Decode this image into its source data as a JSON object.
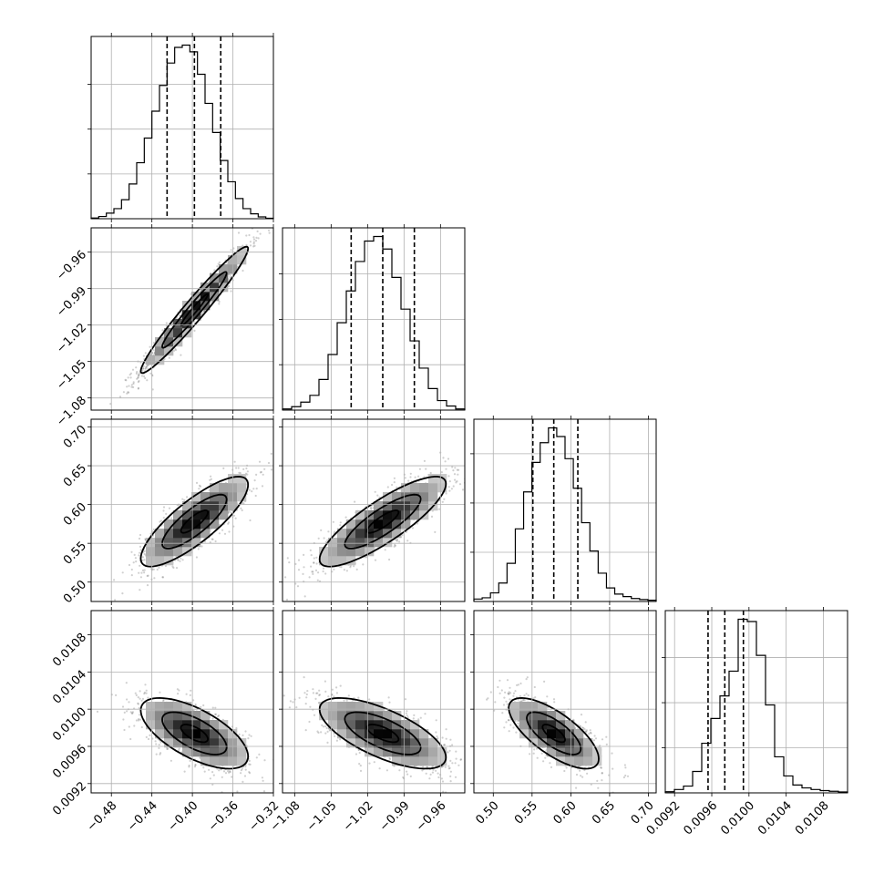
{
  "chart_data": {
    "type": "corner",
    "title": "",
    "grid": true,
    "parameters": [
      {
        "label": "",
        "range": [
          -0.5,
          -0.32
        ],
        "ticks": [
          -0.48,
          -0.44,
          -0.4,
          -0.36,
          -0.32
        ],
        "tick_labels": [
          "−0.48",
          "−0.44",
          "−0.40",
          "−0.36",
          "−0.32"
        ],
        "quantiles": [
          -0.425,
          -0.398,
          -0.372
        ],
        "hist": [
          3,
          10,
          25,
          45,
          85,
          155,
          250,
          360,
          480,
          595,
          695,
          765,
          775,
          745,
          645,
          515,
          385,
          260,
          165,
          90,
          45,
          22,
          8,
          2
        ]
      },
      {
        "label": "",
        "range": [
          -1.09,
          -0.94
        ],
        "ticks": [
          -1.08,
          -1.05,
          -1.02,
          -0.99,
          -0.96
        ],
        "tick_labels": [
          "−1.08",
          "−1.05",
          "−1.02",
          "−0.99",
          "−0.96"
        ],
        "quantiles": [
          -1.0335,
          -1.0075,
          -0.9815
        ],
        "hist": [
          5,
          15,
          35,
          65,
          135,
          245,
          385,
          525,
          655,
          745,
          765,
          710,
          585,
          445,
          305,
          185,
          95,
          42,
          18,
          5
        ]
      },
      {
        "label": "",
        "range": [
          0.475,
          0.71
        ],
        "ticks": [
          0.5,
          0.55,
          0.6,
          0.65,
          0.7
        ],
        "tick_labels": [
          "0.50",
          "0.55",
          "0.60",
          "0.65",
          "0.70"
        ],
        "quantiles": [
          0.551,
          0.578,
          0.609
        ],
        "hist": [
          10,
          15,
          35,
          75,
          155,
          295,
          445,
          565,
          645,
          705,
          670,
          580,
          460,
          320,
          205,
          115,
          55,
          30,
          20,
          12,
          8,
          5
        ]
      },
      {
        "label": "",
        "range": [
          0.0091,
          0.01106
        ],
        "ticks": [
          0.0092,
          0.0096,
          0.01,
          0.0104,
          0.0108
        ],
        "tick_labels": [
          "0.0092",
          "0.0096",
          "0.0100",
          "0.0104",
          "0.0108"
        ],
        "quantiles": [
          0.00956,
          0.00974,
          0.00994
        ],
        "hist": [
          5,
          15,
          30,
          95,
          220,
          330,
          430,
          540,
          770,
          760,
          610,
          390,
          160,
          75,
          35,
          22,
          15,
          10,
          7,
          4
        ]
      }
    ],
    "pairs": [
      {
        "x": 0,
        "y": 1,
        "correlation": 0.97
      },
      {
        "x": 0,
        "y": 2,
        "correlation": 0.82
      },
      {
        "x": 1,
        "y": 2,
        "correlation": 0.84
      },
      {
        "x": 0,
        "y": 3,
        "correlation": -0.65
      },
      {
        "x": 1,
        "y": 3,
        "correlation": -0.68
      },
      {
        "x": 2,
        "y": 3,
        "correlation": -0.72
      }
    ]
  }
}
